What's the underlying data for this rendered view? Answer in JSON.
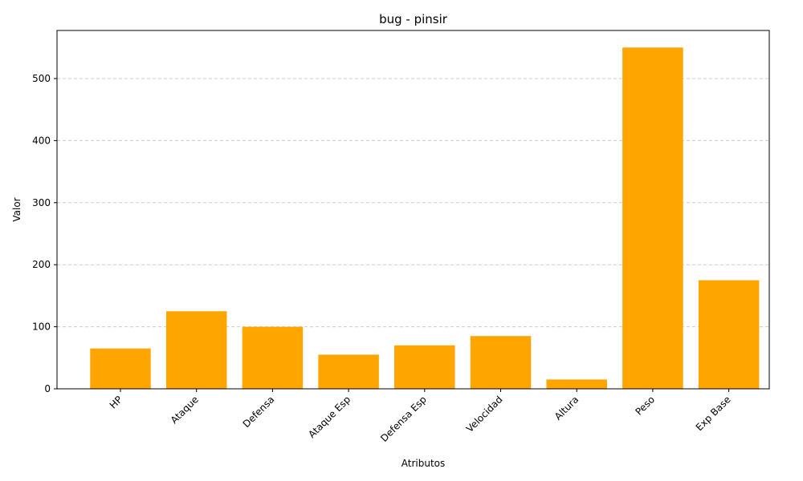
{
  "chart_data": {
    "type": "bar",
    "title": "bug - pinsir",
    "xlabel": "Atributos",
    "ylabel": "Valor",
    "categories": [
      "HP",
      "Ataque",
      "Defensa",
      "Ataque Esp",
      "Defensa Esp",
      "Velocidad",
      "Altura",
      "Peso",
      "Exp Base"
    ],
    "values": [
      65,
      125,
      100,
      55,
      70,
      85,
      15,
      550,
      175
    ],
    "ylim": [
      0,
      577.5
    ],
    "yticks": [
      0,
      100,
      200,
      300,
      400,
      500
    ],
    "grid": "y-dashed",
    "bar_color": "#FFA500",
    "grid_color": "#cccccc"
  }
}
